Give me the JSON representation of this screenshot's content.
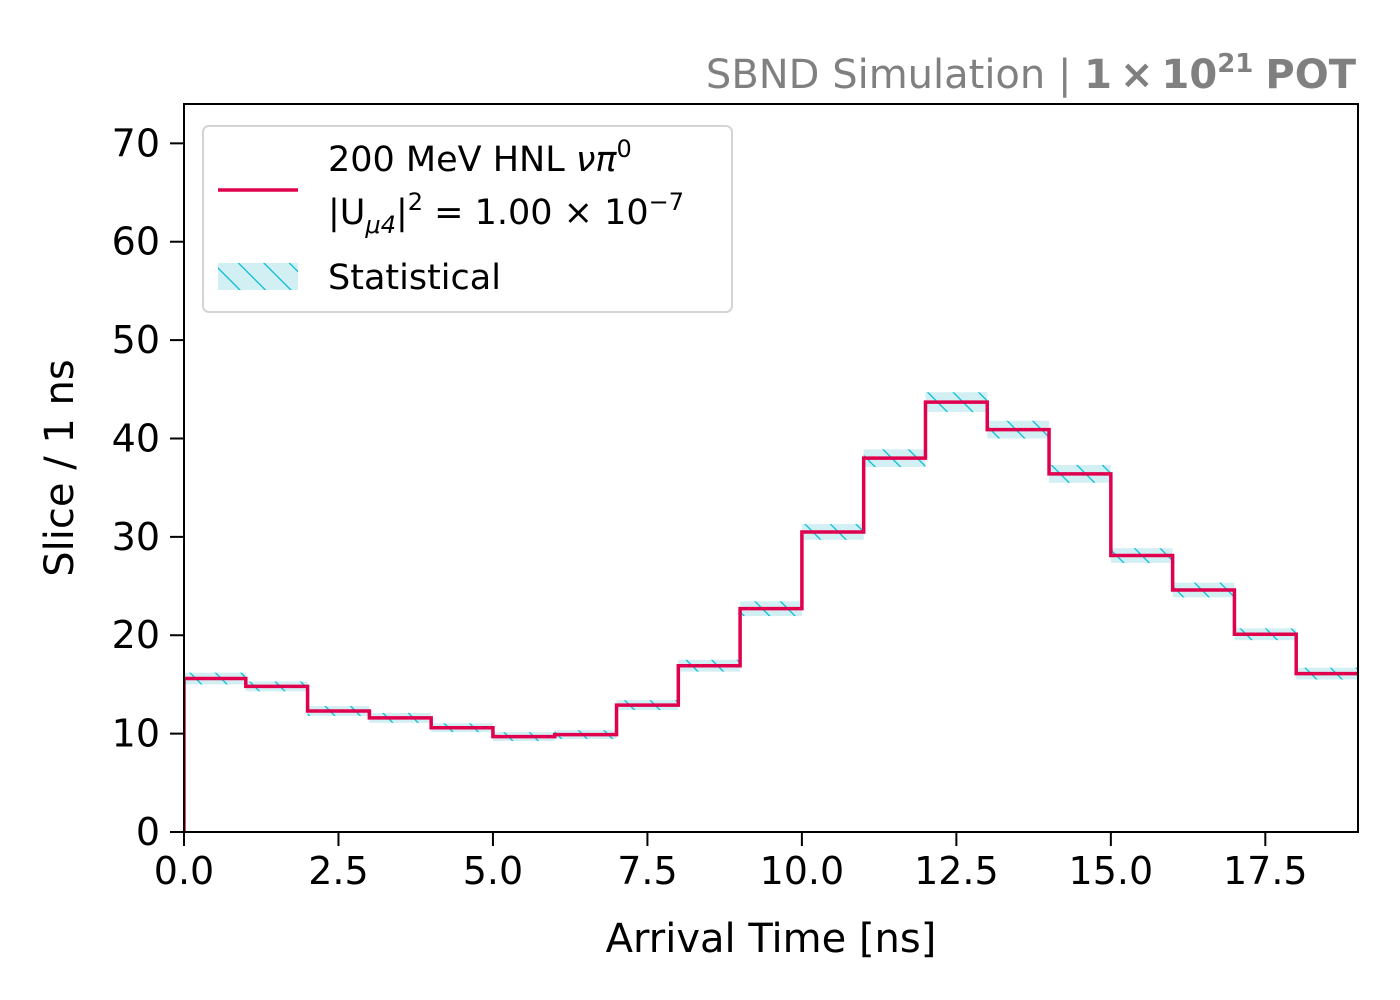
{
  "chart_data": {
    "type": "step-histogram",
    "banner": {
      "prefix": "SBND Simulation | ",
      "exposure_mantissa": "1",
      "times": "×",
      "exposure_base": "10",
      "exposure_exponent": "21",
      "exposure_unit": "POT"
    },
    "xlabel": "Arrival Time [ns]",
    "ylabel": "Slice / 1 ns",
    "xlim": [
      0,
      19
    ],
    "ylim": [
      0,
      74
    ],
    "xticks": [
      0.0,
      2.5,
      5.0,
      7.5,
      10.0,
      12.5,
      15.0,
      17.5
    ],
    "xtick_labels": [
      "0.0",
      "2.5",
      "5.0",
      "7.5",
      "10.0",
      "12.5",
      "15.0",
      "17.5"
    ],
    "yticks": [
      0,
      10,
      20,
      30,
      40,
      50,
      60,
      70
    ],
    "ytick_labels": [
      "0",
      "10",
      "20",
      "30",
      "40",
      "50",
      "60",
      "70"
    ],
    "bin_edges": [
      0,
      1,
      2,
      3,
      4,
      5,
      6,
      7,
      8,
      9,
      10,
      11,
      12,
      13,
      14,
      15,
      16,
      17,
      18,
      19
    ],
    "series": [
      {
        "name_line1": "200 MeV HNL ",
        "name_symbol": "νπ",
        "name_symbol_sup": "0",
        "name_coupling_pre": "|U",
        "name_coupling_sub": "μ4",
        "name_coupling_post": "|",
        "name_coupling_sup": "2",
        "name_coupling_value": " = 1.00 × 10",
        "name_coupling_exp": "−7",
        "color": "#e0004d",
        "values": [
          15.6,
          14.8,
          12.3,
          11.6,
          10.6,
          9.7,
          9.9,
          12.9,
          16.9,
          22.7,
          30.5,
          38.0,
          43.7,
          40.9,
          36.4,
          28.1,
          24.6,
          20.1,
          16.1
        ]
      }
    ],
    "uncertainty": {
      "name": "Statistical",
      "color": "#00bcd4",
      "fill_color": "#d2f0f4",
      "half_width": [
        0.6,
        0.5,
        0.5,
        0.5,
        0.45,
        0.45,
        0.45,
        0.5,
        0.6,
        0.75,
        0.8,
        0.9,
        1.0,
        0.9,
        0.9,
        0.75,
        0.75,
        0.6,
        0.6
      ]
    },
    "legend_position": "upper-left",
    "grid": false
  }
}
